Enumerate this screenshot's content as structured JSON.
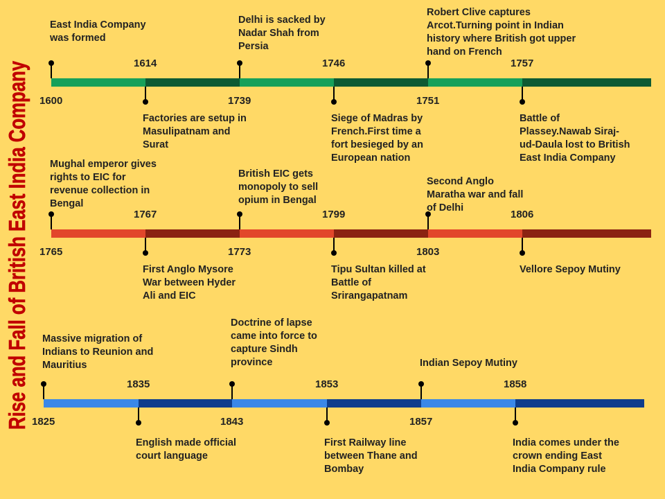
{
  "title": "Rise and Fall of British East India Company",
  "colors": {
    "background": "#ffd966",
    "title": "#c00000",
    "row1": [
      "#16a05a",
      "#0d5a33"
    ],
    "row2": [
      "#e2472b",
      "#8b2312"
    ],
    "row3": [
      "#3a88e8",
      "#0e3d8c"
    ]
  },
  "rows": [
    {
      "events": [
        {
          "year": "1600",
          "text": "East India Company was formed"
        },
        {
          "year": "1614",
          "text": "Factories are setup in Masulipatnam and Surat"
        },
        {
          "year": "1739",
          "text": "Delhi is sacked by Nadar Shah from Persia"
        },
        {
          "year": "1746",
          "text": "Siege of Madras by French.First time a fort besieged by an European nation"
        },
        {
          "year": "1751",
          "text": "Robert Clive captures Arcot.Turning point in Indian history where British got upper hand on French"
        },
        {
          "year": "1757",
          "text": "Battle of Plassey.Nawab Siraj-ud-Daula lost to British East India Company"
        }
      ]
    },
    {
      "events": [
        {
          "year": "1765",
          "text": "Mughal emperor gives rights to EIC for revenue collection in Bengal"
        },
        {
          "year": "1767",
          "text": "First Anglo Mysore War between Hyder Ali and EIC"
        },
        {
          "year": "1773",
          "text": "British EIC gets monopoly to sell opium in Bengal"
        },
        {
          "year": "1799",
          "text": "Tipu Sultan killed at Battle of Srirangapatnam"
        },
        {
          "year": "1803",
          "text": "Second Anglo Maratha war and fall of Delhi"
        },
        {
          "year": "1806",
          "text": "Vellore Sepoy Mutiny"
        }
      ]
    },
    {
      "events": [
        {
          "year": "1825",
          "text": "Massive migration of Indians to Reunion and Mauritius"
        },
        {
          "year": "1835",
          "text": "English made official court language"
        },
        {
          "year": "1843",
          "text": "Doctrine of lapse came into force to capture Sindh province"
        },
        {
          "year": "1853",
          "text": "First Railway line between Thane and Bombay"
        },
        {
          "year": "1857",
          "text": "Indian Sepoy Mutiny"
        },
        {
          "year": "1858",
          "text": "India comes under the crown ending East India Company rule"
        }
      ]
    }
  ]
}
